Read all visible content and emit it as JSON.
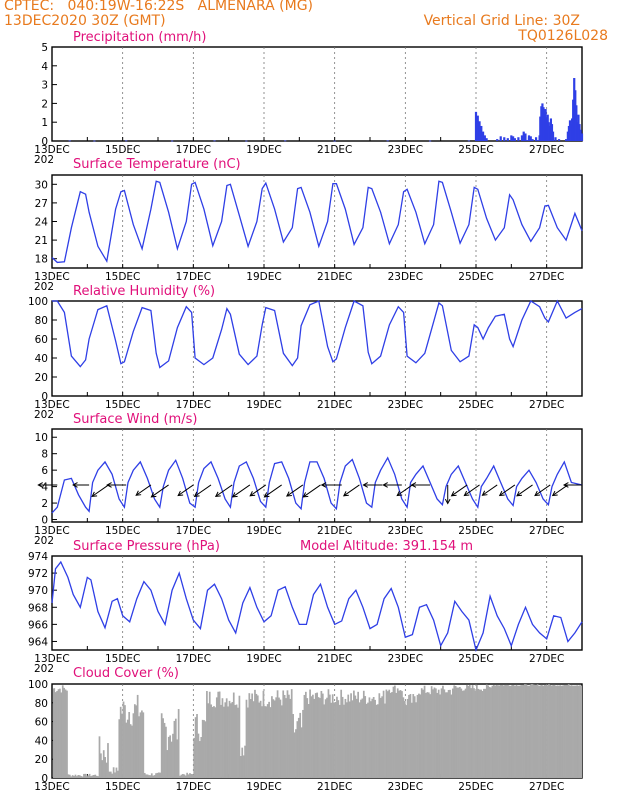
{
  "header": {
    "line1": "CPTEC:   040:19W-16:22S   ALMENARA (MG)",
    "line2": "13DEC2020 30Z (GMT)",
    "grid_note": "Vertical Grid Line: 30Z",
    "code": "TQ0126L028"
  },
  "colors": {
    "header": "#e87a1e",
    "title": "#e0107a",
    "series": "#2f3fe6",
    "cloud": "#a9a9a9",
    "arrow": "#000000"
  },
  "x_axis": {
    "labels": [
      "13DEC",
      "15DEC",
      "17DEC",
      "19DEC",
      "21DEC",
      "23DEC",
      "25DEC",
      "27DEC"
    ],
    "year_fragment": "202",
    "range_days": [
      0,
      15
    ]
  },
  "chart_data": [
    {
      "id": "precip",
      "type": "bar",
      "title": "Precipitation (mm/h)",
      "ylim": [
        0,
        5
      ],
      "yticks": [
        0,
        1,
        2,
        3,
        4,
        5
      ],
      "bars": [
        [
          0.5,
          0.03
        ],
        [
          1.2,
          0.02
        ],
        [
          2.1,
          0.03
        ],
        [
          3.4,
          0.02
        ],
        [
          4.6,
          0.03
        ],
        [
          5.5,
          0.02
        ],
        [
          6.6,
          0.03
        ],
        [
          8.0,
          0.02
        ],
        [
          9.5,
          0.03
        ],
        [
          10.7,
          0.02
        ],
        [
          11.8,
          0.03
        ],
        [
          12.0,
          1.55
        ],
        [
          12.05,
          1.35
        ],
        [
          12.1,
          1.05
        ],
        [
          12.15,
          0.8
        ],
        [
          12.2,
          0.5
        ],
        [
          12.25,
          0.3
        ],
        [
          12.3,
          0.15
        ],
        [
          12.6,
          0.1
        ],
        [
          12.7,
          0.25
        ],
        [
          12.8,
          0.2
        ],
        [
          12.9,
          0.15
        ],
        [
          13.0,
          0.3
        ],
        [
          13.05,
          0.25
        ],
        [
          13.1,
          0.15
        ],
        [
          13.2,
          0.2
        ],
        [
          13.3,
          0.3
        ],
        [
          13.35,
          0.5
        ],
        [
          13.4,
          0.4
        ],
        [
          13.5,
          0.2
        ],
        [
          13.6,
          0.1
        ],
        [
          13.7,
          0.2
        ],
        [
          13.8,
          0.3
        ],
        [
          13.9,
          0.5
        ],
        [
          13.95,
          0.4
        ],
        [
          14.0,
          0.1
        ],
        [
          13.05,
          0.05
        ],
        [
          13.4,
          0.05
        ],
        [
          13.55,
          0.05
        ],
        [
          13.6,
          0.05
        ],
        [
          13.45,
          0.05
        ],
        [
          13.5,
          0.3
        ],
        [
          13.55,
          0.25
        ],
        [
          13.75,
          0.05
        ],
        [
          13.82,
          1.3
        ],
        [
          13.85,
          1.85
        ],
        [
          13.88,
          2.0
        ],
        [
          13.91,
          1.8
        ],
        [
          13.94,
          1.5
        ],
        [
          13.97,
          1.7
        ],
        [
          14.0,
          1.2
        ],
        [
          14.03,
          1.4
        ],
        [
          14.06,
          1.0
        ],
        [
          14.09,
          0.8
        ],
        [
          14.12,
          1.2
        ],
        [
          14.15,
          0.9
        ],
        [
          14.18,
          0.5
        ],
        [
          14.25,
          0.2
        ],
        [
          14.35,
          0.1
        ],
        [
          14.55,
          0.1
        ],
        [
          14.6,
          0.5
        ],
        [
          14.63,
          0.8
        ],
        [
          14.66,
          1.1
        ],
        [
          14.69,
          0.9
        ],
        [
          14.72,
          1.2
        ],
        [
          14.75,
          2.2
        ],
        [
          14.78,
          3.35
        ],
        [
          14.81,
          2.7
        ],
        [
          14.84,
          1.9
        ],
        [
          14.87,
          1.0
        ],
        [
          14.9,
          1.4
        ],
        [
          14.93,
          0.9
        ],
        [
          14.96,
          0.6
        ],
        [
          15.0,
          0.4
        ]
      ]
    },
    {
      "id": "temp",
      "type": "line",
      "title": "Surface Temperature (nC)",
      "ylim": [
        16.5,
        31.5
      ],
      "yticks": [
        18,
        21,
        24,
        27,
        30
      ],
      "x": [
        0,
        0.15,
        0.35,
        0.55,
        0.8,
        0.95,
        1.05,
        1.3,
        1.55,
        1.8,
        1.95,
        2.05,
        2.3,
        2.55,
        2.8,
        2.95,
        3.05,
        3.3,
        3.55,
        3.8,
        3.95,
        4.05,
        4.3,
        4.55,
        4.8,
        4.95,
        5.05,
        5.3,
        5.55,
        5.8,
        5.95,
        6.05,
        6.3,
        6.55,
        6.8,
        6.95,
        7.05,
        7.3,
        7.55,
        7.8,
        7.95,
        8.05,
        8.3,
        8.55,
        8.8,
        8.95,
        9.05,
        9.3,
        9.55,
        9.8,
        9.95,
        10.05,
        10.3,
        10.55,
        10.8,
        10.95,
        11.05,
        11.3,
        11.55,
        11.8,
        11.95,
        12.05,
        12.3,
        12.55,
        12.8,
        12.95,
        13.05,
        13.3,
        13.55,
        13.8,
        13.95,
        14.05,
        14.3,
        14.55,
        14.8,
        15.0
      ],
      "y": [
        18.2,
        17.4,
        17.5,
        23,
        28.8,
        28.4,
        25.5,
        20,
        17.6,
        26,
        28.8,
        29,
        23.5,
        19.6,
        26,
        30.5,
        30.3,
        25.5,
        19.6,
        24,
        30,
        30.3,
        26,
        20.1,
        24,
        29.8,
        30,
        25,
        20,
        24,
        29.3,
        30.2,
        26,
        20.7,
        23,
        29.3,
        29.5,
        25.5,
        20,
        24,
        30.1,
        30.1,
        26,
        20.3,
        23,
        29.5,
        29.3,
        25.5,
        20.4,
        23.5,
        28.8,
        29.2,
        25.5,
        20.4,
        23.5,
        30.5,
        30.3,
        25.5,
        20.5,
        23.5,
        29.5,
        29.2,
        24.5,
        21,
        23,
        28.3,
        27.5,
        23.5,
        20.8,
        23,
        26.5,
        26.6,
        23,
        21,
        25.3,
        22.5
      ]
    },
    {
      "id": "rh",
      "type": "line",
      "title": "Relative Humidity (%)",
      "ylim": [
        0,
        100
      ],
      "yticks": [
        0,
        20,
        40,
        60,
        80,
        100
      ],
      "x": [
        0,
        0.15,
        0.35,
        0.55,
        0.8,
        0.95,
        1.05,
        1.3,
        1.55,
        1.8,
        1.95,
        2.05,
        2.3,
        2.55,
        2.8,
        2.95,
        3.05,
        3.3,
        3.55,
        3.8,
        3.95,
        4.05,
        4.3,
        4.55,
        4.8,
        4.95,
        5.05,
        5.3,
        5.55,
        5.8,
        5.95,
        6.05,
        6.3,
        6.55,
        6.8,
        6.95,
        7.05,
        7.3,
        7.55,
        7.8,
        7.95,
        8.05,
        8.3,
        8.55,
        8.8,
        8.95,
        9.05,
        9.3,
        9.55,
        9.8,
        9.95,
        10.05,
        10.3,
        10.55,
        10.8,
        10.95,
        11.05,
        11.3,
        11.55,
        11.8,
        11.95,
        12.05,
        12.2,
        12.35,
        12.55,
        12.8,
        12.95,
        13.05,
        13.3,
        13.55,
        13.8,
        13.95,
        14.05,
        14.3,
        14.55,
        14.8,
        15.0
      ],
      "y": [
        100,
        100,
        88,
        42,
        31,
        38,
        60,
        91,
        95,
        58,
        34,
        36,
        68,
        93,
        90,
        45,
        30,
        37,
        72,
        94,
        88,
        40,
        33,
        40,
        70,
        92,
        86,
        44,
        33,
        42,
        75,
        93,
        90,
        45,
        32,
        40,
        74,
        96,
        100,
        52,
        36,
        39,
        72,
        100,
        95,
        46,
        34,
        42,
        75,
        94,
        88,
        42,
        35,
        45,
        78,
        98,
        95,
        48,
        36,
        42,
        75,
        72,
        60,
        72,
        84,
        86,
        60,
        52,
        80,
        100,
        94,
        82,
        78,
        100,
        82,
        88,
        92
      ]
    },
    {
      "id": "wind",
      "type": "line",
      "title": "Surface Wind (m/s)",
      "ylim": [
        -0.3,
        11
      ],
      "yticks": [
        0,
        2,
        4,
        6,
        8,
        10
      ],
      "x": [
        0,
        0.15,
        0.35,
        0.55,
        0.75,
        0.95,
        1.05,
        1.15,
        1.3,
        1.5,
        1.7,
        1.9,
        2.05,
        2.15,
        2.3,
        2.5,
        2.7,
        2.9,
        3.05,
        3.15,
        3.3,
        3.5,
        3.7,
        3.9,
        4.05,
        4.15,
        4.3,
        4.5,
        4.7,
        4.9,
        5.05,
        5.15,
        5.3,
        5.5,
        5.7,
        5.9,
        6.05,
        6.15,
        6.3,
        6.5,
        6.7,
        6.9,
        7.05,
        7.15,
        7.3,
        7.5,
        7.7,
        7.9,
        8.05,
        8.15,
        8.3,
        8.5,
        8.7,
        8.9,
        9.05,
        9.15,
        9.3,
        9.5,
        9.7,
        9.9,
        10.05,
        10.15,
        10.3,
        10.5,
        10.7,
        10.9,
        11.05,
        11.15,
        11.3,
        11.5,
        11.7,
        11.9,
        12.05,
        12.15,
        12.3,
        12.5,
        12.7,
        12.9,
        13.05,
        13.15,
        13.3,
        13.5,
        13.7,
        13.9,
        14.05,
        14.15,
        14.3,
        14.5,
        14.7,
        15.0
      ],
      "y": [
        0.8,
        1.5,
        4.8,
        5,
        3,
        1.5,
        1,
        4.5,
        6,
        7,
        5.5,
        2.5,
        1.5,
        4.5,
        6,
        7,
        5,
        2.5,
        1.5,
        4,
        6,
        7.2,
        5,
        2,
        1.5,
        4.5,
        6.2,
        7,
        5,
        2.5,
        1.5,
        4.5,
        6.5,
        7,
        5,
        2.2,
        1.5,
        4.5,
        6.8,
        7,
        5,
        2,
        1.3,
        4.5,
        7,
        7,
        5,
        2,
        1.3,
        4.5,
        6.5,
        7.3,
        5,
        2,
        1.5,
        4.5,
        6,
        7.5,
        5.5,
        2.5,
        1.5,
        4.5,
        5.5,
        6.5,
        4.5,
        2.5,
        1.8,
        4,
        5.5,
        6.5,
        4.5,
        2.5,
        1.5,
        4,
        5,
        6.5,
        4.5,
        2.5,
        1.7,
        4,
        5,
        6,
        4.5,
        2.5,
        1.8,
        4,
        5.5,
        7,
        4.5,
        4.2
      ],
      "arrows": [
        [
          0.15,
          1.6,
          "l"
        ],
        [
          1.05,
          1.0,
          "l"
        ],
        [
          1.6,
          1.8,
          "dl"
        ],
        [
          2.1,
          1.6,
          "l"
        ],
        [
          2.8,
          1.4,
          "dl"
        ],
        [
          3.3,
          2.0,
          "dl"
        ],
        [
          4.0,
          1.5,
          "dl"
        ],
        [
          4.5,
          1.8,
          "dl"
        ],
        [
          5.1,
          1.8,
          "dl"
        ],
        [
          5.6,
          2.0,
          "dl"
        ],
        [
          6.05,
          1.6,
          "dl"
        ],
        [
          6.5,
          2.0,
          "dl"
        ],
        [
          7.1,
          1.7,
          "dl"
        ],
        [
          7.6,
          2.0,
          "dl"
        ],
        [
          8.2,
          1.8,
          "l"
        ],
        [
          8.7,
          1.6,
          "dl"
        ],
        [
          9.35,
          1.6,
          "l"
        ],
        [
          9.9,
          1.5,
          "l"
        ],
        [
          10.2,
          1.5,
          "dl"
        ],
        [
          10.7,
          1.5,
          "l"
        ],
        [
          11.2,
          1.5,
          "d"
        ],
        [
          11.75,
          1.6,
          "dl"
        ],
        [
          12.1,
          1.5,
          "dl"
        ],
        [
          12.6,
          1.4,
          "dl"
        ],
        [
          13.1,
          1.5,
          "dl"
        ],
        [
          13.6,
          1.6,
          "dl"
        ],
        [
          14.1,
          1.5,
          "dl"
        ],
        [
          14.6,
          1.5,
          "dl"
        ],
        [
          15.0,
          1.4,
          "l"
        ]
      ]
    },
    {
      "id": "pressure",
      "type": "line",
      "title": "Surface Pressure (hPa)",
      "annotation": "Model Altitude: 391.154 m",
      "ylim": [
        963,
        974
      ],
      "yticks": [
        964,
        966,
        968,
        970,
        972,
        974
      ],
      "x": [
        0,
        0.1,
        0.25,
        0.45,
        0.6,
        0.8,
        1.0,
        1.1,
        1.3,
        1.5,
        1.7,
        1.85,
        2.0,
        2.2,
        2.4,
        2.6,
        2.8,
        3.0,
        3.2,
        3.4,
        3.6,
        3.8,
        4.0,
        4.2,
        4.4,
        4.6,
        4.8,
        5.0,
        5.2,
        5.4,
        5.6,
        5.8,
        6.0,
        6.2,
        6.4,
        6.6,
        6.8,
        7.0,
        7.2,
        7.4,
        7.6,
        7.8,
        8.0,
        8.2,
        8.4,
        8.6,
        8.8,
        9.0,
        9.2,
        9.4,
        9.6,
        9.8,
        10.0,
        10.2,
        10.4,
        10.6,
        10.8,
        11.0,
        11.2,
        11.4,
        11.6,
        11.8,
        12.0,
        12.2,
        12.4,
        12.6,
        12.8,
        13.0,
        13.2,
        13.4,
        13.6,
        13.8,
        14.0,
        14.2,
        14.4,
        14.6,
        14.8,
        15.0
      ],
      "y": [
        968.5,
        972.5,
        973.3,
        971.5,
        969.5,
        968,
        971.5,
        971.2,
        967.5,
        965.6,
        968.7,
        969,
        967,
        966.3,
        969,
        971,
        970,
        967.5,
        966,
        970,
        972,
        969,
        966.5,
        965.5,
        970,
        970.7,
        969,
        966.5,
        965,
        968.5,
        970.3,
        968,
        966.3,
        967,
        970,
        970.4,
        968,
        966,
        966,
        969.5,
        970.7,
        968,
        966,
        966.4,
        969,
        970,
        968,
        965.5,
        966,
        969,
        970.2,
        968,
        964.5,
        964.8,
        968,
        968.3,
        966.5,
        963.5,
        965,
        968.7,
        967.5,
        966.5,
        963,
        965,
        969.3,
        967,
        965.5,
        963.5,
        966,
        968,
        966,
        965,
        964.3,
        967,
        966.8,
        964,
        965,
        966.3
      ]
    },
    {
      "id": "cloud",
      "type": "bar",
      "title": "Cloud Cover (%)",
      "ylim": [
        0,
        100
      ],
      "yticks": [
        0,
        20,
        40,
        60,
        80,
        100
      ],
      "regimes": [
        [
          0,
          0.42,
          95,
          0.05
        ],
        [
          0.42,
          1.3,
          3,
          0.5
        ],
        [
          1.3,
          1.6,
          28,
          0.6
        ],
        [
          1.6,
          1.85,
          8,
          0.5
        ],
        [
          1.85,
          2.6,
          72,
          0.25
        ],
        [
          2.6,
          3.05,
          4,
          0.5
        ],
        [
          3.05,
          3.6,
          52,
          0.45
        ],
        [
          3.6,
          4.0,
          4,
          0.4
        ],
        [
          4.0,
          4.35,
          55,
          0.3
        ],
        [
          4.35,
          5.3,
          85,
          0.12
        ],
        [
          5.3,
          5.45,
          35,
          0.4
        ],
        [
          5.45,
          6.8,
          85,
          0.12
        ],
        [
          6.8,
          7.1,
          52,
          0.4
        ],
        [
          7.1,
          9.4,
          86,
          0.1
        ],
        [
          9.4,
          9.9,
          95,
          0.05
        ],
        [
          9.9,
          10.3,
          82,
          0.1
        ],
        [
          10.3,
          11.3,
          93,
          0.06
        ],
        [
          11.3,
          12.4,
          96,
          0.04
        ],
        [
          12.4,
          15.0,
          99,
          0.01
        ]
      ]
    }
  ]
}
